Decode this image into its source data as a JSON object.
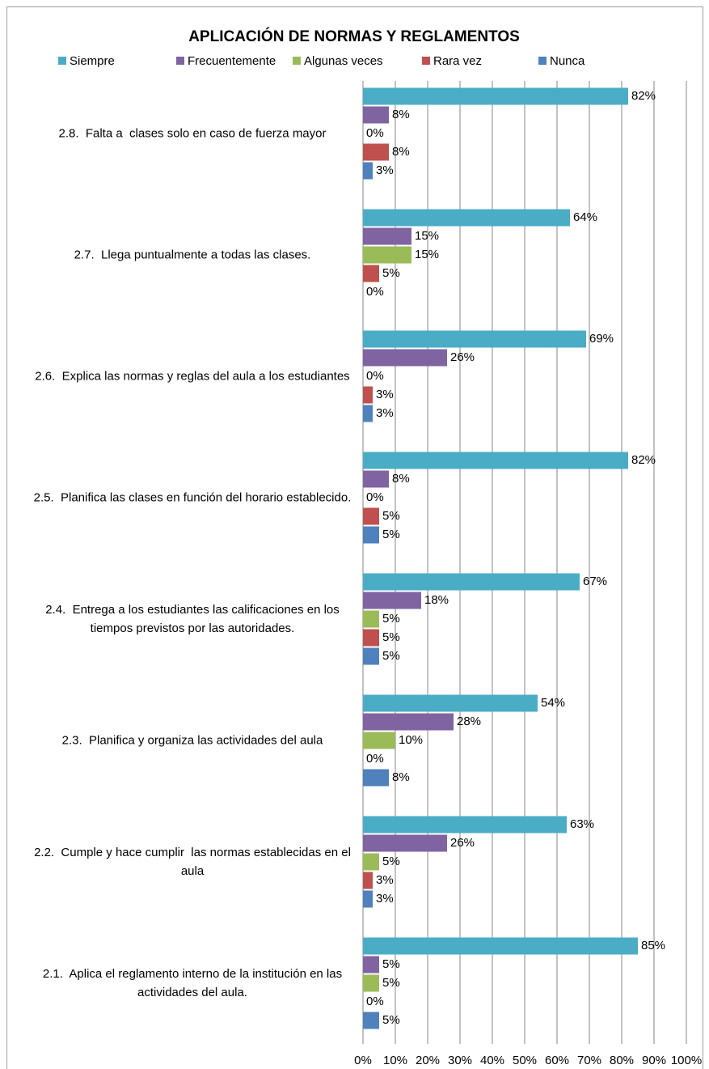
{
  "chart_data": {
    "type": "bar",
    "orientation": "horizontal",
    "title": "APLICACIÓN DE NORMAS Y REGLAMENTOS",
    "categories": [
      "2.8.  Falta a  clases solo en caso de fuerza mayor",
      "2.7.  Llega puntualmente a todas las clases.",
      "2.6.  Explica las normas y reglas del aula a los estudiantes",
      "2.5.  Planifica las clases en función del horario establecido.",
      "2.4.  Entrega a los estudiantes las calificaciones en los tiempos previstos por las autoridades.",
      "2.3.  Planifica y organiza las actividades del aula",
      "2.2.  Cumple y hace cumplir  las normas establecidas en el aula",
      "2.1.  Aplica el reglamento interno de la institución en las actividades del aula."
    ],
    "series": [
      {
        "name": "Siempre",
        "color": "#4bacc6",
        "values": [
          82,
          64,
          69,
          82,
          67,
          54,
          63,
          85
        ],
        "value_labels": [
          "82%",
          "64%",
          "69%",
          "82%",
          "67%",
          "54%",
          "63%",
          "85%"
        ]
      },
      {
        "name": "Frecuentemente",
        "color": "#8064a2",
        "values": [
          8,
          15,
          26,
          8,
          18,
          28,
          26,
          5
        ],
        "value_labels": [
          "8%",
          "15%",
          "26%",
          "8%",
          "18%",
          "28%",
          "26%",
          "5%"
        ]
      },
      {
        "name": "Algunas veces",
        "color": "#9bbb59",
        "values": [
          0,
          15,
          0,
          0,
          5,
          10,
          5,
          5
        ],
        "value_labels": [
          "0%",
          "15%",
          "0%",
          "0%",
          "5%",
          "10%",
          "5%",
          "5%"
        ]
      },
      {
        "name": "Rara vez",
        "color": "#c0504d",
        "values": [
          8,
          5,
          3,
          5,
          5,
          0,
          3,
          0
        ],
        "value_labels": [
          "8%",
          "5%",
          "3%",
          "5%",
          "5%",
          "0%",
          "3%",
          "0%"
        ]
      },
      {
        "name": "Nunca",
        "color": "#4f81bd",
        "values": [
          3,
          0,
          3,
          5,
          5,
          8,
          3,
          5
        ],
        "value_labels": [
          "3%",
          "0%",
          "3%",
          "5%",
          "5%",
          "8%",
          "3%",
          "5%"
        ]
      }
    ],
    "xlim": [
      0,
      100
    ],
    "xticks": [
      {
        "value": 0,
        "label": "0%"
      },
      {
        "value": 10,
        "label": "10%"
      },
      {
        "value": 20,
        "label": "20%"
      },
      {
        "value": 30,
        "label": "30%"
      },
      {
        "value": 40,
        "label": "40%"
      },
      {
        "value": 50,
        "label": "50%"
      },
      {
        "value": 60,
        "label": "60%"
      },
      {
        "value": 70,
        "label": "70%"
      },
      {
        "value": 80,
        "label": "80%"
      },
      {
        "value": 90,
        "label": "90%"
      },
      {
        "value": 100,
        "label": "100%"
      }
    ],
    "grid": true,
    "legend": "top"
  }
}
